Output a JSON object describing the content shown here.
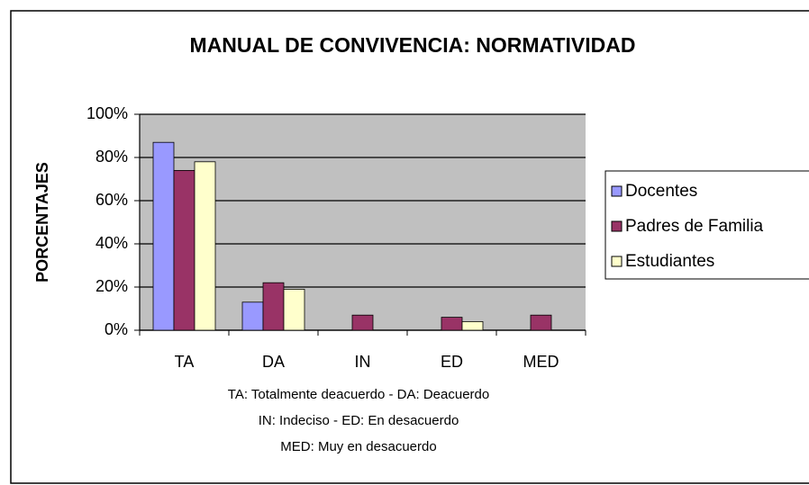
{
  "chart_data": {
    "type": "bar",
    "title": "MANUAL DE CONVIVENCIA: NORMATIVIDAD",
    "y_label": "PORCENTAJES",
    "categories": [
      "TA",
      "DA",
      "IN",
      "ED",
      "MED"
    ],
    "series": [
      {
        "name": "Docentes",
        "color": "#9999ff",
        "values": [
          87,
          13,
          0,
          0,
          0
        ]
      },
      {
        "name": "Padres de Familia",
        "color": "#993366",
        "values": [
          74,
          22,
          7,
          6,
          7
        ]
      },
      {
        "name": "Estudiantes",
        "color": "#ffffcc",
        "values": [
          78,
          19,
          0,
          4,
          0
        ]
      }
    ],
    "ylim": [
      0,
      100
    ],
    "yticks": [
      {
        "value": 0,
        "label": "0%"
      },
      {
        "value": 20,
        "label": "20%"
      },
      {
        "value": 40,
        "label": "40%"
      },
      {
        "value": 60,
        "label": "60%"
      },
      {
        "value": 80,
        "label": "80%"
      },
      {
        "value": 100,
        "label": "100%"
      }
    ],
    "grid": true,
    "annotations": [
      "TA: Totalmente deacuerdo - DA: Deacuerdo",
      "IN: Indeciso - ED: En desacuerdo",
      "MED: Muy en desacuerdo"
    ]
  }
}
